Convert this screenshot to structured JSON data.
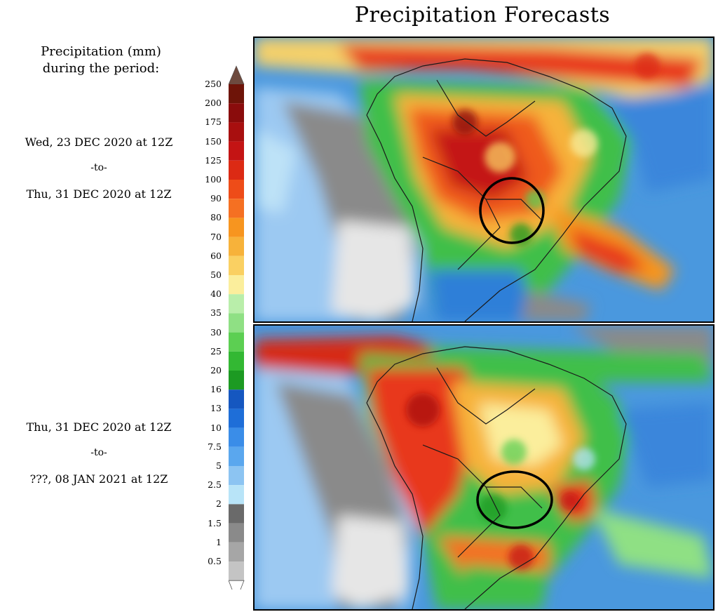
{
  "title": "Precipitation Forecasts",
  "legend": {
    "title_line1": "Precipitation (mm)",
    "title_line2": "during the period:",
    "ticks": [
      "250",
      "200",
      "175",
      "150",
      "125",
      "100",
      "90",
      "80",
      "70",
      "60",
      "50",
      "40",
      "35",
      "30",
      "25",
      "20",
      "16",
      "13",
      "10",
      "7.5",
      "5",
      "2.5",
      "2",
      "1.5",
      "1",
      "0.5"
    ],
    "colors": [
      "#6e1408",
      "#8a0c0c",
      "#a80f0f",
      "#c41414",
      "#dc2a14",
      "#ee4c18",
      "#f57022",
      "#f7951f",
      "#f7b23a",
      "#fad062",
      "#fbee9c",
      "#b9eeaa",
      "#8fe084",
      "#5ccf52",
      "#33b833",
      "#1c9a22",
      "#1557c0",
      "#1e6ed8",
      "#3a8de8",
      "#5aa7ee",
      "#8cc4f2",
      "#b8e4f8",
      "#6a6a6a",
      "#8a8a8a",
      "#a6a6a6",
      "#c4c4c4"
    ],
    "top_cap_color": "#6e4a3e",
    "bottom_cap_color": "#ffffff"
  },
  "periods": [
    {
      "start": "Wed, 23 DEC 2020 at 12Z",
      "separator": "-to-",
      "end": "Thu, 31 DEC 2020 at 12Z"
    },
    {
      "start": "Thu, 31 DEC 2020 at 12Z",
      "separator": "-to-",
      "end": "???, 08 JAN 2021 at 12Z"
    }
  ]
}
